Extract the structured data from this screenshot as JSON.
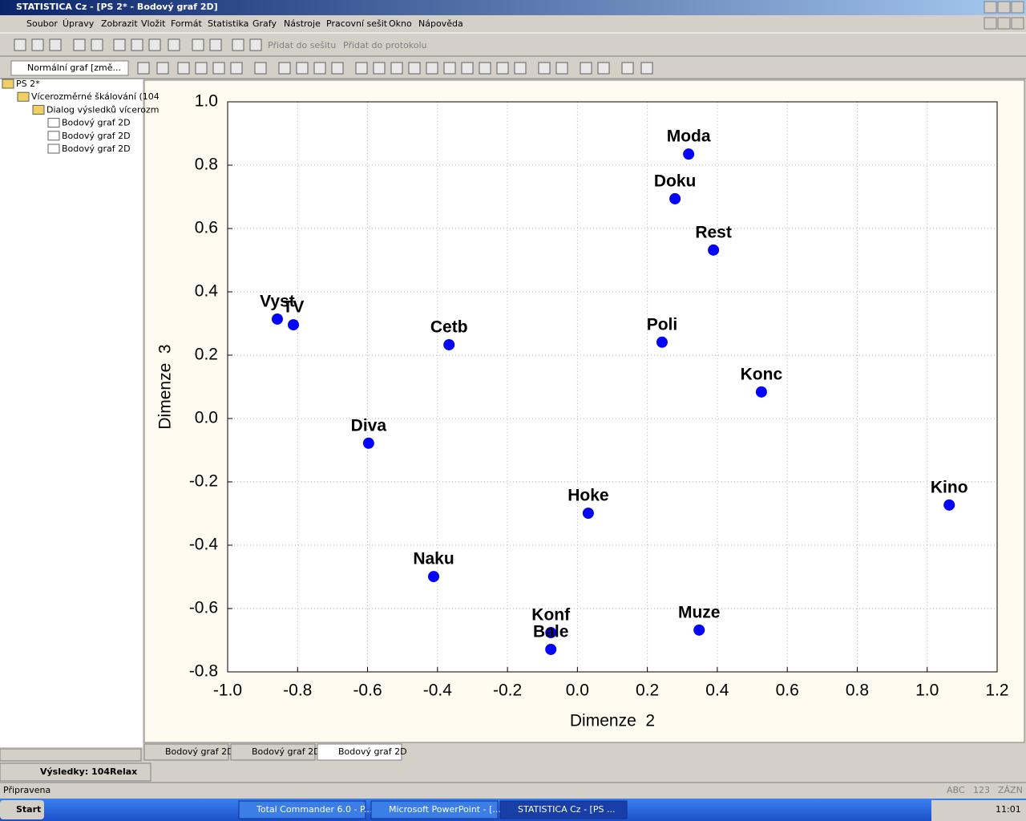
{
  "window": {
    "title": "STATISTICA Cz - [PS 2* - Bodový graf 2D]"
  },
  "menu": [
    "Soubor",
    "Úpravy",
    "Zobrazit",
    "Vložit",
    "Formát",
    "Statistika",
    "Grafy",
    "Nástroje",
    "Pracovní sešit",
    "Okno",
    "Nápověda"
  ],
  "toolbar": {
    "add_workbook": "Přidat do sešitu",
    "add_report": "Přidat do protokolu",
    "graph_type": "Normální graf [změ..."
  },
  "tree": [
    "PS 2*",
    "Vícerozměrné škálování (104",
    "Dialog výsledků vícerozm",
    "Bodový graf 2D",
    "Bodový graf 2D",
    "Bodový graf 2D"
  ],
  "tabs": [
    "Bodový graf 2D",
    "Bodový graf 2D",
    "Bodový graf 2D"
  ],
  "results": "Výsledky: 104Relax",
  "status": {
    "text": "Připravena",
    "indicators": [
      "ABC",
      "123",
      "ZÁZN"
    ]
  },
  "taskbar": {
    "start": "Start",
    "tasks": [
      "Total Commander 6.0 - P...",
      "Microsoft PowerPoint - [...",
      "STATISTICA Cz - [PS ..."
    ],
    "clock": "11:01"
  },
  "chart_data": {
    "type": "scatter",
    "x_label": "Dimenze  2",
    "y_label": "Dimenze  3",
    "labels": [
      "Moda",
      "Doku",
      "Rest",
      "Vyst",
      "TV",
      "Cetb",
      "Poli",
      "Konc",
      "Diva",
      "Kino",
      "Hoke",
      "Naku",
      "Muze",
      "Konf",
      "Bale"
    ],
    "x": [
      0.318,
      0.279,
      0.389,
      -0.858,
      -0.812,
      -0.367,
      0.242,
      0.526,
      -0.597,
      1.063,
      0.031,
      -0.411,
      0.348,
      -0.076,
      -0.076
    ],
    "values": [
      0.835,
      0.694,
      0.532,
      0.314,
      0.296,
      0.233,
      0.241,
      0.084,
      -0.078,
      -0.273,
      -0.299,
      -0.499,
      -0.668,
      -0.676,
      -0.729
    ],
    "color": "#0000ff",
    "xlim": [
      -1.0,
      1.2
    ],
    "xticks": [
      {
        "value": -1.0,
        "label": "-1.0"
      },
      -0.8,
      -0.6,
      -0.4,
      -0.2,
      {
        "value": 0,
        "label": "0.0"
      },
      0.2,
      0.4,
      0.6,
      0.8,
      {
        "value": 1.0,
        "label": "1.0"
      },
      1.2
    ],
    "ylim": [
      -0.8,
      1.0
    ],
    "yticks": [
      -0.8,
      -0.6,
      -0.4,
      -0.2,
      {
        "value": 0,
        "label": "0.0"
      },
      0.2,
      0.4,
      0.6,
      0.8,
      {
        "value": 1.0,
        "label": "1.0"
      }
    ],
    "grid": true
  }
}
